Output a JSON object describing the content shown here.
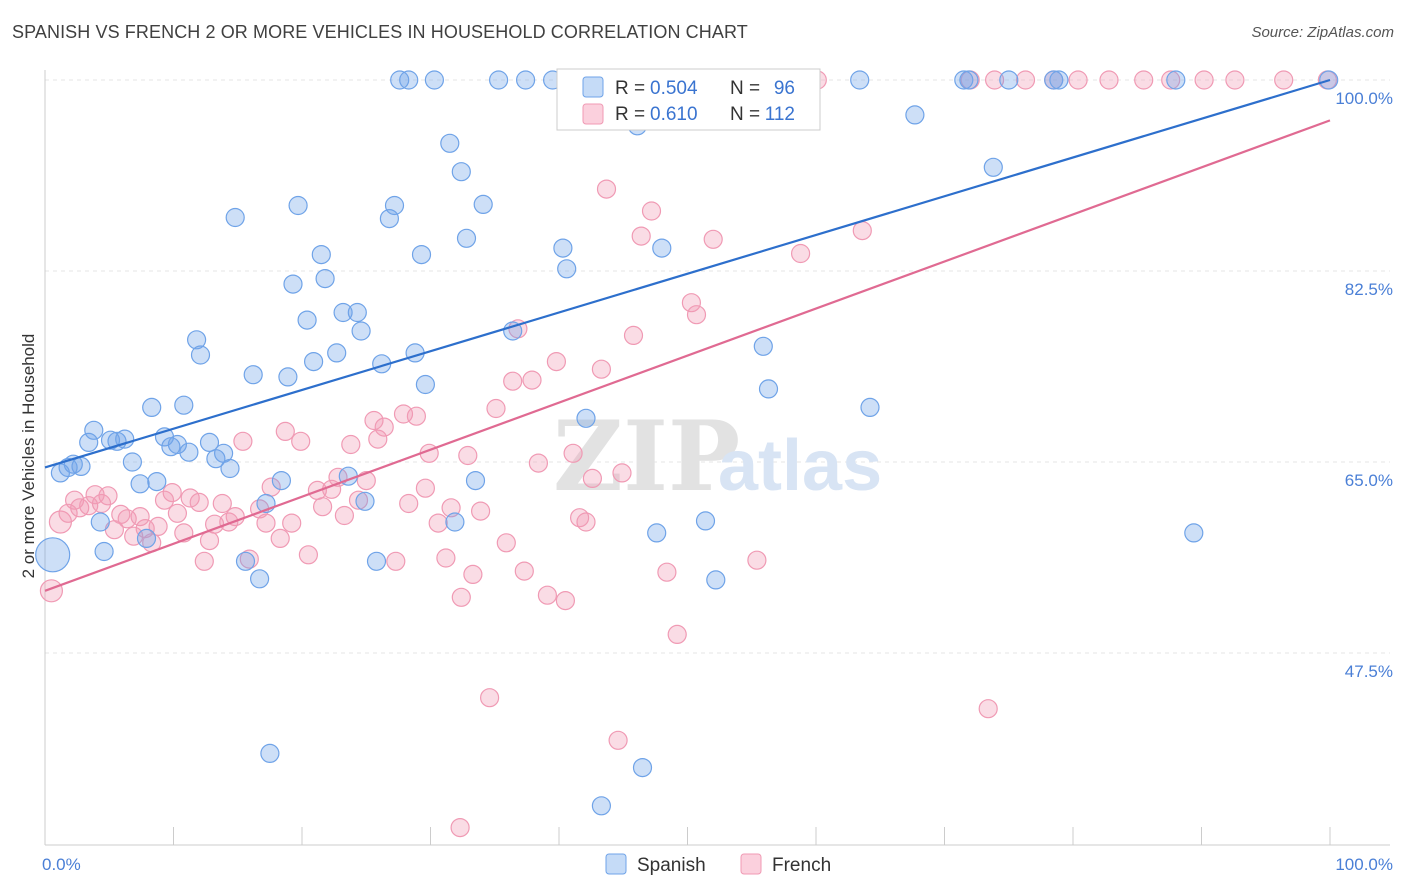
{
  "title": "SPANISH VS FRENCH 2 OR MORE VEHICLES IN HOUSEHOLD CORRELATION CHART",
  "source": "Source: ZipAtlas.com",
  "watermark": {
    "zip": "ZIP",
    "atlas": "atlas"
  },
  "colors": {
    "spanish": "#6fa3e8",
    "spanish_line": "#2d6fcc",
    "french": "#f09ab4",
    "french_line": "#e06a92",
    "axis_text": "#4a7fd6"
  },
  "legend": {
    "r_label": "R =",
    "n_label": "N =",
    "rows": [
      {
        "series": "Spanish",
        "r": "0.504",
        "n": "96"
      },
      {
        "series": "French",
        "r": "0.610",
        "n": "112"
      }
    ]
  },
  "chart_data": {
    "type": "scatter",
    "title": "SPANISH VS FRENCH 2 OR MORE VEHICLES IN HOUSEHOLD CORRELATION CHART",
    "xlabel": "",
    "ylabel": "2 or more Vehicles in Household",
    "xlim": [
      0,
      100
    ],
    "ylim": [
      33.5,
      101.5
    ],
    "x_tick_labels": [
      "0.0%",
      "100.0%"
    ],
    "y_ticks": [
      47.5,
      65.0,
      82.5,
      100.0
    ],
    "y_tick_labels": [
      "47.5%",
      "65.0%",
      "82.5%",
      "100.0%"
    ],
    "grid": true,
    "legend_placement": "top-center",
    "series": [
      {
        "name": "Spanish",
        "trend": {
          "x": [
            0,
            100
          ],
          "y": [
            64.5,
            100.0
          ]
        },
        "points": [
          [
            0.6,
            56.5
          ],
          [
            1.2,
            64.0
          ],
          [
            1.8,
            64.5
          ],
          [
            2.2,
            64.8
          ],
          [
            2.8,
            64.6
          ],
          [
            3.4,
            66.8
          ],
          [
            3.8,
            67.9
          ],
          [
            4.3,
            59.5
          ],
          [
            4.6,
            56.8
          ],
          [
            5.1,
            67.0
          ],
          [
            5.6,
            66.9
          ],
          [
            6.2,
            67.1
          ],
          [
            6.8,
            65.0
          ],
          [
            7.4,
            63.0
          ],
          [
            7.9,
            58.0
          ],
          [
            8.3,
            70.0
          ],
          [
            8.7,
            63.2
          ],
          [
            9.3,
            67.3
          ],
          [
            9.8,
            66.4
          ],
          [
            10.3,
            66.6
          ],
          [
            10.8,
            70.2
          ],
          [
            11.2,
            65.9
          ],
          [
            11.8,
            76.2
          ],
          [
            12.1,
            74.8
          ],
          [
            12.8,
            66.8
          ],
          [
            13.3,
            65.3
          ],
          [
            13.9,
            65.8
          ],
          [
            14.4,
            64.4
          ],
          [
            14.8,
            87.4
          ],
          [
            15.6,
            55.9
          ],
          [
            16.2,
            73.0
          ],
          [
            16.7,
            54.3
          ],
          [
            17.2,
            61.2
          ],
          [
            18.4,
            63.3
          ],
          [
            18.9,
            72.8
          ],
          [
            19.3,
            81.3
          ],
          [
            19.7,
            88.5
          ],
          [
            20.4,
            78.0
          ],
          [
            20.9,
            74.2
          ],
          [
            21.5,
            84.0
          ],
          [
            21.8,
            81.8
          ],
          [
            22.7,
            75.0
          ],
          [
            23.2,
            78.7
          ],
          [
            23.6,
            63.7
          ],
          [
            24.3,
            78.7
          ],
          [
            24.6,
            77.0
          ],
          [
            24.9,
            61.4
          ],
          [
            25.8,
            55.9
          ],
          [
            26.2,
            74.0
          ],
          [
            26.8,
            87.3
          ],
          [
            27.2,
            88.5
          ],
          [
            27.6,
            100.0
          ],
          [
            28.3,
            100.0
          ],
          [
            28.8,
            75.0
          ],
          [
            29.3,
            84.0
          ],
          [
            29.6,
            72.1
          ],
          [
            30.3,
            100.0
          ],
          [
            31.5,
            94.2
          ],
          [
            31.9,
            59.5
          ],
          [
            32.4,
            91.6
          ],
          [
            32.8,
            85.5
          ],
          [
            33.5,
            63.3
          ],
          [
            34.1,
            88.6
          ],
          [
            35.3,
            100.0
          ],
          [
            36.4,
            77.0
          ],
          [
            37.4,
            100.0
          ],
          [
            39.5,
            100.0
          ],
          [
            40.3,
            84.6
          ],
          [
            40.6,
            82.7
          ],
          [
            42.1,
            69.0
          ],
          [
            43.3,
            33.5
          ],
          [
            44.6,
            100.0
          ],
          [
            46.1,
            95.8
          ],
          [
            46.5,
            37.0
          ],
          [
            47.6,
            58.5
          ],
          [
            48.0,
            84.6
          ],
          [
            49.2,
            100.0
          ],
          [
            51.4,
            59.6
          ],
          [
            52.2,
            54.2
          ],
          [
            55.0,
            100.0
          ],
          [
            55.9,
            75.6
          ],
          [
            56.3,
            71.7
          ],
          [
            58.5,
            100.0
          ],
          [
            63.4,
            100.0
          ],
          [
            64.2,
            70.0
          ],
          [
            67.7,
            96.8
          ],
          [
            71.5,
            100.0
          ],
          [
            71.9,
            100.0
          ],
          [
            73.8,
            92.0
          ],
          [
            75.0,
            100.0
          ],
          [
            78.5,
            100.0
          ],
          [
            78.9,
            100.0
          ],
          [
            88.0,
            100.0
          ],
          [
            89.4,
            58.5
          ],
          [
            99.9,
            100.0
          ],
          [
            17.5,
            38.3
          ]
        ]
      },
      {
        "name": "French",
        "trend": {
          "x": [
            0,
            100
          ],
          "y": [
            53.2,
            96.3
          ]
        },
        "points": [
          [
            0.5,
            53.2
          ],
          [
            1.2,
            59.5
          ],
          [
            1.8,
            60.3
          ],
          [
            2.3,
            61.5
          ],
          [
            2.7,
            60.8
          ],
          [
            3.4,
            61.0
          ],
          [
            3.9,
            62.0
          ],
          [
            4.4,
            61.2
          ],
          [
            4.9,
            61.9
          ],
          [
            5.4,
            58.8
          ],
          [
            5.9,
            60.2
          ],
          [
            6.4,
            59.8
          ],
          [
            6.9,
            58.2
          ],
          [
            7.4,
            60.0
          ],
          [
            7.8,
            58.9
          ],
          [
            8.3,
            57.6
          ],
          [
            8.8,
            59.1
          ],
          [
            9.3,
            61.5
          ],
          [
            9.9,
            62.2
          ],
          [
            10.3,
            60.3
          ],
          [
            10.8,
            58.5
          ],
          [
            11.3,
            61.7
          ],
          [
            12.0,
            61.3
          ],
          [
            12.4,
            55.9
          ],
          [
            12.8,
            57.8
          ],
          [
            13.2,
            59.3
          ],
          [
            13.8,
            61.2
          ],
          [
            14.3,
            59.5
          ],
          [
            14.8,
            60.0
          ],
          [
            15.4,
            66.9
          ],
          [
            15.9,
            56.1
          ],
          [
            16.7,
            60.7
          ],
          [
            17.2,
            59.4
          ],
          [
            17.6,
            62.7
          ],
          [
            18.3,
            58.0
          ],
          [
            18.7,
            67.8
          ],
          [
            19.2,
            59.4
          ],
          [
            19.9,
            66.9
          ],
          [
            20.5,
            56.5
          ],
          [
            21.2,
            62.4
          ],
          [
            21.6,
            60.9
          ],
          [
            22.3,
            62.5
          ],
          [
            22.8,
            63.6
          ],
          [
            23.3,
            60.1
          ],
          [
            23.8,
            66.6
          ],
          [
            24.4,
            61.5
          ],
          [
            25.0,
            63.3
          ],
          [
            25.6,
            68.8
          ],
          [
            25.9,
            67.1
          ],
          [
            26.4,
            68.2
          ],
          [
            27.3,
            55.9
          ],
          [
            27.9,
            69.4
          ],
          [
            28.3,
            61.2
          ],
          [
            28.9,
            69.2
          ],
          [
            29.6,
            62.6
          ],
          [
            29.9,
            65.8
          ],
          [
            30.6,
            59.4
          ],
          [
            31.2,
            56.2
          ],
          [
            31.6,
            60.8
          ],
          [
            32.4,
            52.6
          ],
          [
            32.9,
            65.6
          ],
          [
            33.3,
            54.7
          ],
          [
            33.9,
            60.5
          ],
          [
            34.6,
            43.4
          ],
          [
            35.1,
            69.9
          ],
          [
            35.9,
            57.6
          ],
          [
            36.4,
            72.4
          ],
          [
            36.8,
            77.2
          ],
          [
            37.3,
            55.0
          ],
          [
            37.9,
            72.5
          ],
          [
            38.4,
            64.9
          ],
          [
            39.1,
            52.8
          ],
          [
            39.8,
            74.2
          ],
          [
            40.5,
            52.3
          ],
          [
            41.1,
            65.8
          ],
          [
            41.6,
            59.9
          ],
          [
            42.1,
            59.5
          ],
          [
            42.6,
            63.5
          ],
          [
            43.3,
            73.5
          ],
          [
            43.7,
            90.0
          ],
          [
            44.6,
            39.5
          ],
          [
            44.9,
            64.0
          ],
          [
            45.8,
            76.6
          ],
          [
            46.4,
            85.7
          ],
          [
            47.2,
            88.0
          ],
          [
            48.4,
            54.9
          ],
          [
            49.2,
            49.2
          ],
          [
            50.3,
            79.6
          ],
          [
            50.7,
            78.5
          ],
          [
            52.0,
            85.4
          ],
          [
            55.4,
            56.0
          ],
          [
            58.8,
            84.1
          ],
          [
            63.6,
            86.2
          ],
          [
            72.0,
            100.0
          ],
          [
            73.9,
            100.0
          ],
          [
            76.3,
            100.0
          ],
          [
            78.5,
            100.0
          ],
          [
            80.4,
            100.0
          ],
          [
            82.8,
            100.0
          ],
          [
            85.5,
            100.0
          ],
          [
            87.6,
            100.0
          ],
          [
            90.2,
            100.0
          ],
          [
            92.6,
            100.0
          ],
          [
            96.4,
            100.0
          ],
          [
            99.8,
            100.0
          ],
          [
            50.0,
            100.0
          ],
          [
            52.5,
            100.0
          ],
          [
            54.7,
            100.0
          ],
          [
            57.1,
            100.0
          ],
          [
            60.1,
            100.0
          ],
          [
            32.3,
            31.5
          ],
          [
            73.4,
            42.4
          ]
        ]
      }
    ]
  }
}
